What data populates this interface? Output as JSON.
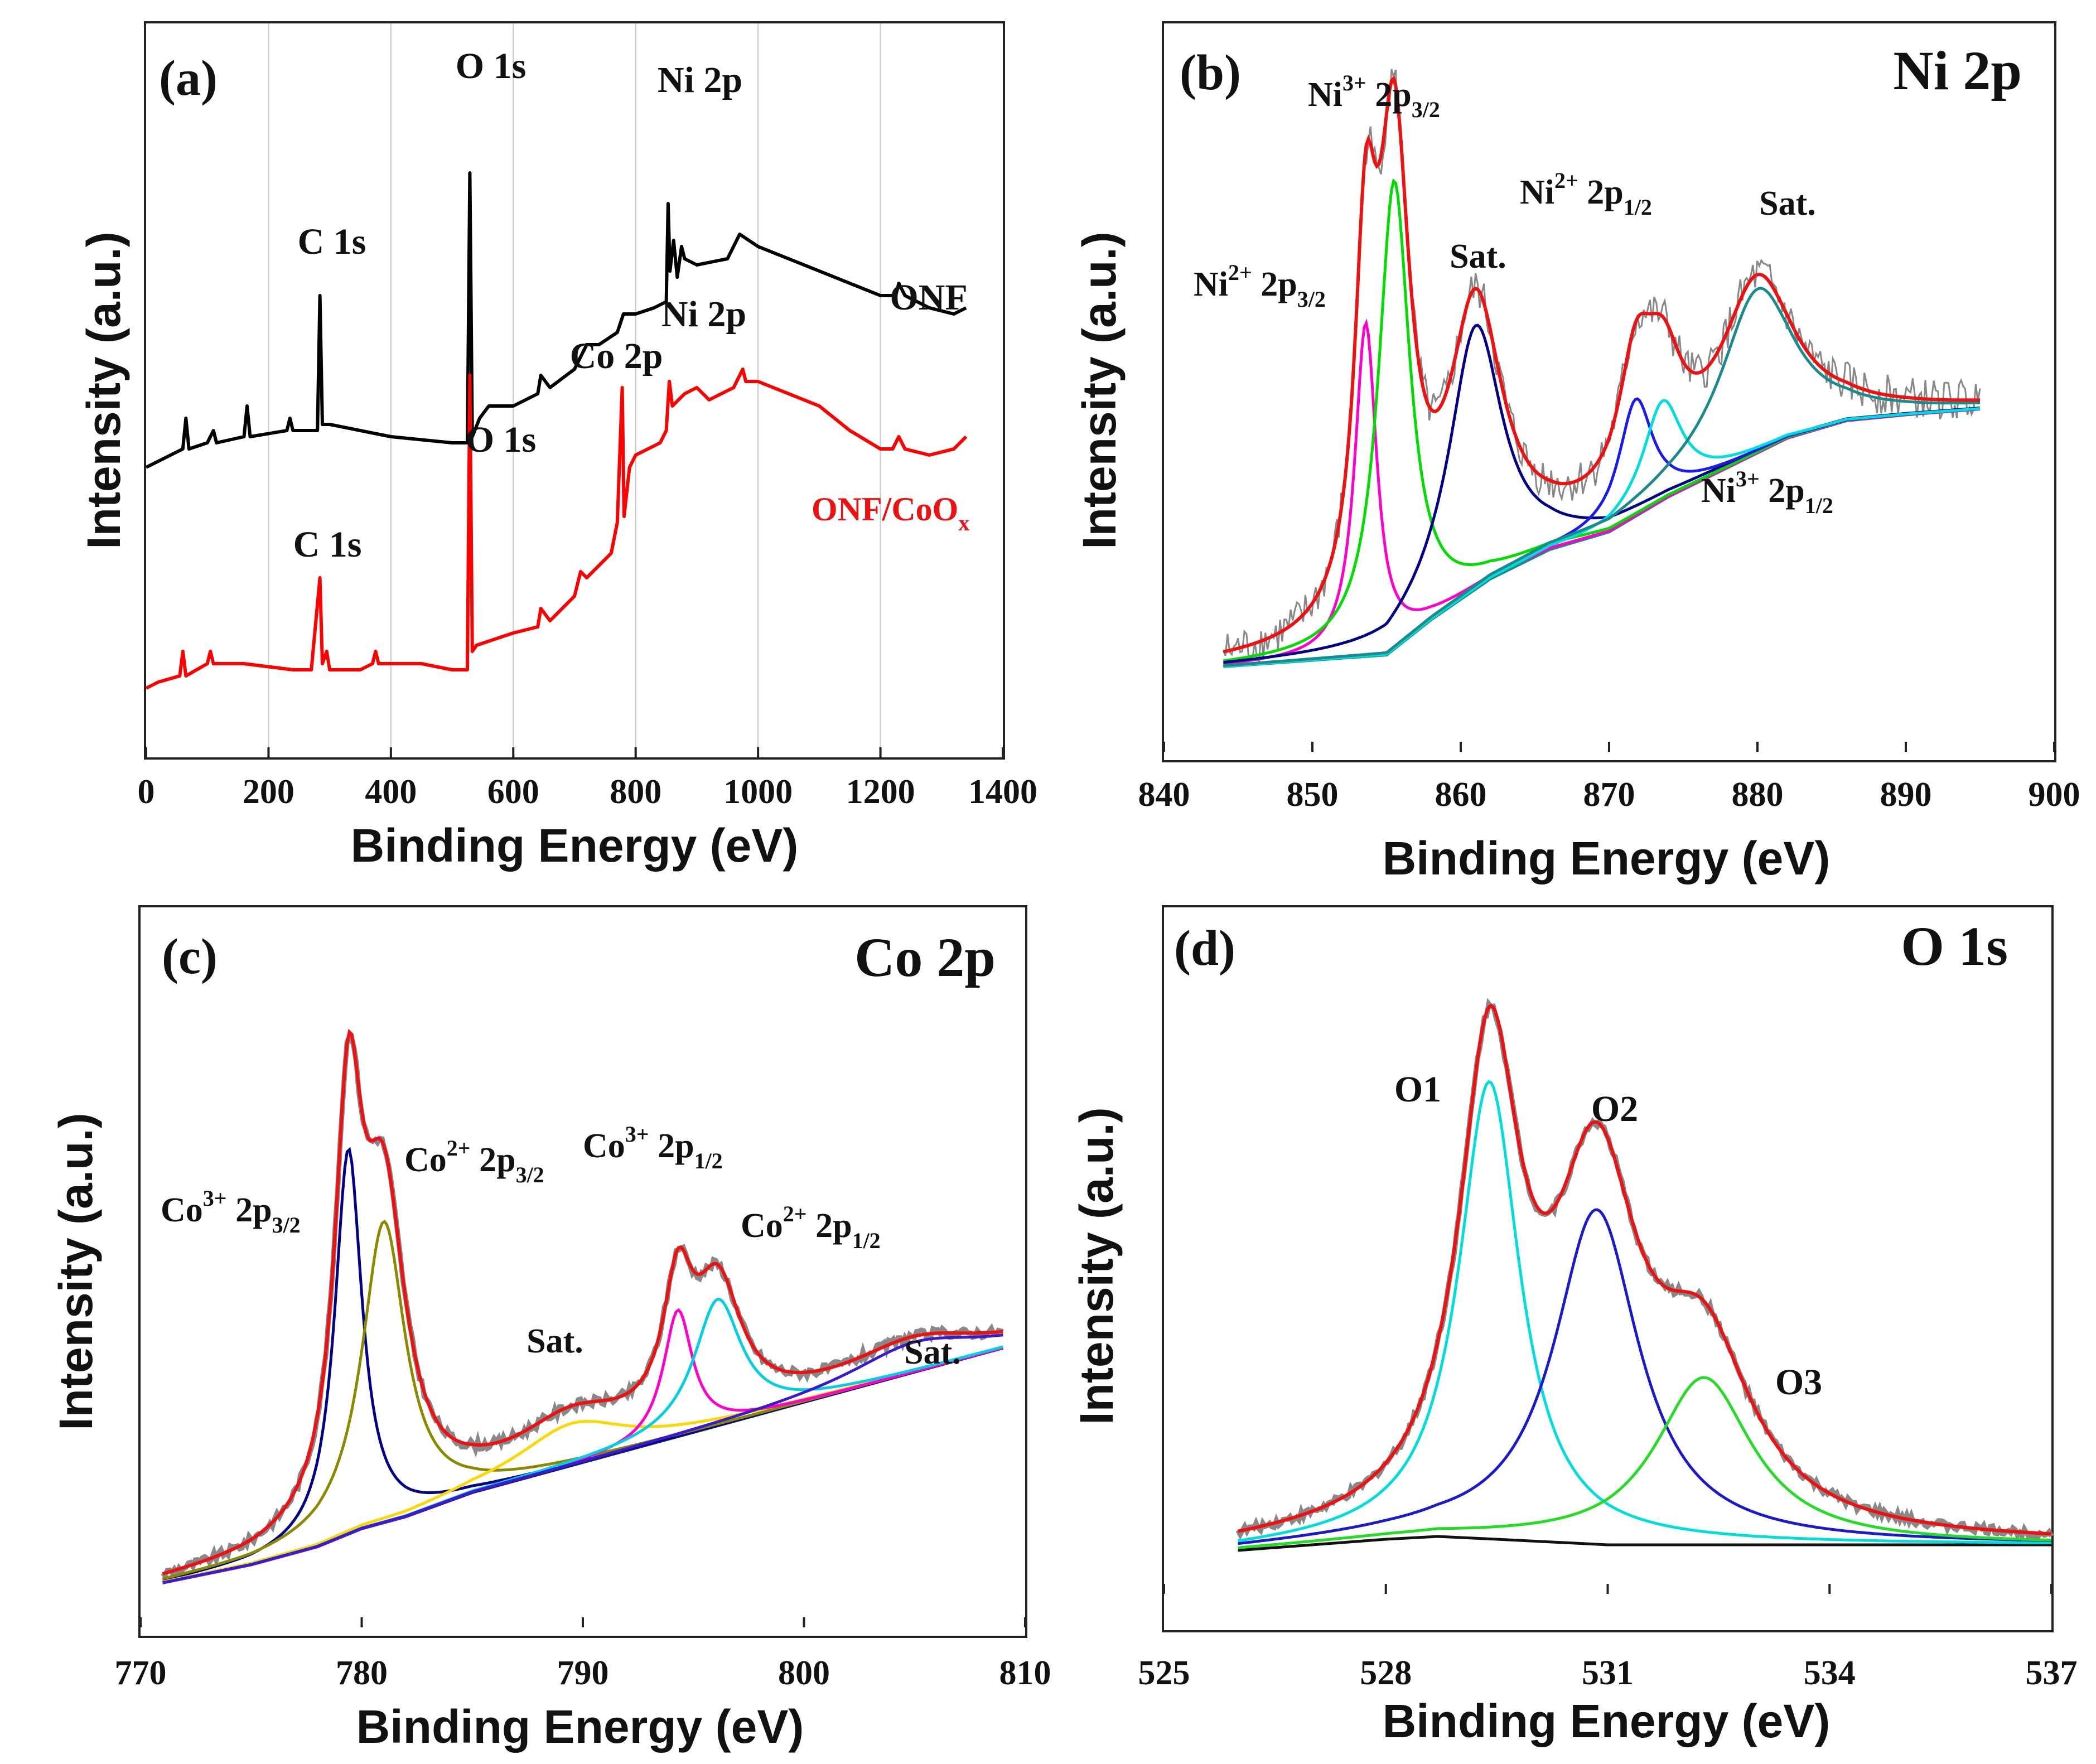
{
  "figure": {
    "panels": [
      {
        "id": "a",
        "letter": "(a)",
        "xlabel": "Binding Energy (eV)",
        "ylabel": "Intensity (a.u.)",
        "corner_title": ""
      },
      {
        "id": "b",
        "letter": "(b)",
        "xlabel": "Binding Energy (eV)",
        "ylabel": "Intensity (a.u.)",
        "corner_title": "Ni 2p"
      },
      {
        "id": "c",
        "letter": "(c)",
        "xlabel": "Binding Energy (eV)",
        "ylabel": "Intensity (a.u.)",
        "corner_title": "Co 2p"
      },
      {
        "id": "d",
        "letter": "(d)",
        "xlabel": "Binding Energy (eV)",
        "ylabel": "Intensity (a.u.)",
        "corner_title": "O 1s"
      }
    ]
  },
  "chart_data": [
    {
      "panel": "a",
      "type": "line",
      "title": "(a)",
      "xlabel": "Binding Energy (eV)",
      "ylabel": "Intensity (a.u.)",
      "xlim": [
        0,
        1400
      ],
      "ylim": [
        0,
        100
      ],
      "xticks": [
        0,
        200,
        400,
        600,
        800,
        1000,
        1200,
        1400
      ],
      "grid": "vertical",
      "series": [
        {
          "name": "ONF",
          "color": "#000000",
          "points": [
            [
              0,
              42
            ],
            [
              20,
              43
            ],
            [
              60,
              45
            ],
            [
              65,
              50
            ],
            [
              70,
              45
            ],
            [
              100,
              46
            ],
            [
              110,
              48
            ],
            [
              115,
              46
            ],
            [
              160,
              47
            ],
            [
              165,
              52
            ],
            [
              170,
              47
            ],
            [
              230,
              48
            ],
            [
              235,
              50
            ],
            [
              240,
              48
            ],
            [
              280,
              48
            ],
            [
              284,
              70
            ],
            [
              288,
              49
            ],
            [
              300,
              49
            ],
            [
              400,
              47
            ],
            [
              500,
              46
            ],
            [
              525,
              46
            ],
            [
              529,
              90
            ],
            [
              533,
              47
            ],
            [
              545,
              50
            ],
            [
              560,
              52
            ],
            [
              600,
              52
            ],
            [
              640,
              54
            ],
            [
              645,
              57
            ],
            [
              660,
              55
            ],
            [
              700,
              58
            ],
            [
              720,
              62
            ],
            [
              740,
              62
            ],
            [
              770,
              64
            ],
            [
              780,
              67
            ],
            [
              800,
              67
            ],
            [
              830,
              68
            ],
            [
              850,
              69
            ],
            [
              853,
              85
            ],
            [
              856,
              74
            ],
            [
              862,
              79
            ],
            [
              868,
              73
            ],
            [
              875,
              78
            ],
            [
              880,
              76
            ],
            [
              900,
              75
            ],
            [
              950,
              76
            ],
            [
              970,
              80
            ],
            [
              1000,
              78
            ],
            [
              1050,
              76
            ],
            [
              1100,
              74
            ],
            [
              1150,
              72
            ],
            [
              1200,
              70
            ],
            [
              1225,
              70
            ],
            [
              1230,
              72
            ],
            [
              1240,
              70
            ],
            [
              1280,
              68
            ],
            [
              1320,
              67
            ],
            [
              1340,
              68
            ]
          ]
        },
        {
          "name": "ONF/CoO_x",
          "color": "#ff0000",
          "points": [
            [
              0,
              6
            ],
            [
              20,
              7
            ],
            [
              55,
              8
            ],
            [
              60,
              12
            ],
            [
              65,
              8
            ],
            [
              100,
              10
            ],
            [
              105,
              12
            ],
            [
              110,
              10
            ],
            [
              160,
              10
            ],
            [
              240,
              9
            ],
            [
              270,
              9
            ],
            [
              284,
              24
            ],
            [
              288,
              10
            ],
            [
              295,
              12
            ],
            [
              300,
              9
            ],
            [
              350,
              9
            ],
            [
              370,
              10
            ],
            [
              375,
              12
            ],
            [
              380,
              10
            ],
            [
              450,
              10
            ],
            [
              500,
              9
            ],
            [
              525,
              9
            ],
            [
              529,
              57
            ],
            [
              533,
              12
            ],
            [
              540,
              13
            ],
            [
              600,
              15
            ],
            [
              640,
              16
            ],
            [
              645,
              19
            ],
            [
              660,
              17
            ],
            [
              700,
              21
            ],
            [
              710,
              25
            ],
            [
              720,
              24
            ],
            [
              750,
              27
            ],
            [
              760,
              28
            ],
            [
              770,
              33
            ],
            [
              778,
              55
            ],
            [
              781,
              34
            ],
            [
              790,
              42
            ],
            [
              800,
              44
            ],
            [
              840,
              46
            ],
            [
              850,
              48
            ],
            [
              855,
              56
            ],
            [
              860,
              52
            ],
            [
              880,
              54
            ],
            [
              900,
              55
            ],
            [
              920,
              53
            ],
            [
              940,
              54
            ],
            [
              960,
              55
            ],
            [
              975,
              58
            ],
            [
              980,
              56
            ],
            [
              1000,
              56
            ],
            [
              1050,
              54
            ],
            [
              1100,
              52
            ],
            [
              1150,
              48
            ],
            [
              1200,
              45
            ],
            [
              1220,
              45
            ],
            [
              1230,
              47
            ],
            [
              1240,
              45
            ],
            [
              1280,
              44
            ],
            [
              1320,
              45
            ],
            [
              1340,
              47
            ]
          ]
        }
      ],
      "annotations": [
        {
          "text": "O 1s",
          "group": "ONF"
        },
        {
          "text": "Ni 2p",
          "group": "ONF"
        },
        {
          "text": "C 1s",
          "group": "ONF"
        },
        {
          "text": "ONF",
          "group": "ONF"
        },
        {
          "text": "Ni 2p",
          "group": "ONF/CoOx"
        },
        {
          "text": "Co 2p",
          "group": "ONF/CoOx"
        },
        {
          "text": "O 1s",
          "group": "ONF/CoOx"
        },
        {
          "text": "C 1s",
          "group": "ONF/CoOx"
        },
        {
          "text": "ONF/CoO",
          "sub": "x",
          "group": "ONF/CoOx"
        }
      ]
    },
    {
      "panel": "b",
      "type": "line",
      "title": "Ni 2p",
      "xlabel": "Binding Energy (eV)",
      "ylabel": "Intensity (a.u.)",
      "xlim": [
        840,
        900
      ],
      "ylim": [
        0,
        100
      ],
      "xticks": [
        840,
        850,
        860,
        870,
        880,
        890,
        900
      ],
      "baseline": {
        "color": "#1a8a8a",
        "points": [
          [
            844,
            9
          ],
          [
            855,
            11
          ],
          [
            858,
            17
          ],
          [
            862,
            24
          ],
          [
            866,
            29
          ],
          [
            870,
            32
          ],
          [
            874,
            38
          ],
          [
            878,
            43
          ],
          [
            882,
            48
          ],
          [
            886,
            51
          ],
          [
            890,
            52
          ],
          [
            895,
            53
          ]
        ]
      },
      "peaks": [
        {
          "name": "Ni2+ 2p3/2",
          "color": "#ff00cc",
          "center": 853.6,
          "height": 57,
          "width": 0.9
        },
        {
          "name": "Ni3+ 2p3/2",
          "color": "#00dd00",
          "center": 855.5,
          "height": 80,
          "width": 1.3
        },
        {
          "name": "Sat. (861)",
          "color": "#000088",
          "center": 861.0,
          "height": 45,
          "width": 2.2
        },
        {
          "name": "Ni2+ 2p1/2",
          "color": "#1a1aee",
          "center": 871.8,
          "height": 20,
          "width": 1.4
        },
        {
          "name": "Ni3+ 2p1/2",
          "color": "#00dddd",
          "center": 873.6,
          "height": 17,
          "width": 1.6
        },
        {
          "name": "Sat. (880)",
          "color": "#1a8a8a",
          "center": 880.0,
          "height": 28,
          "width": 3.0
        }
      ],
      "envelope_color": "#ee1111",
      "raw_color": "#888888",
      "annotations": [
        {
          "text": "Ni",
          "sup": "3+",
          "tail": " 2p",
          "sub": "3/2"
        },
        {
          "text": "Ni",
          "sup": "2+",
          "tail": " 2p",
          "sub": "3/2"
        },
        {
          "text": "Sat."
        },
        {
          "text": "Ni",
          "sup": "2+",
          "tail": " 2p",
          "sub": "1/2"
        },
        {
          "text": "Sat."
        },
        {
          "text": "Ni",
          "sup": "3+",
          "tail": " 2p",
          "sub": "1/2"
        }
      ]
    },
    {
      "panel": "c",
      "type": "line",
      "title": "Co 2p",
      "xlabel": "Binding Energy (eV)",
      "ylabel": "Intensity (a.u.)",
      "xlim": [
        770,
        810
      ],
      "ylim": [
        0,
        100
      ],
      "xticks": [
        770,
        780,
        790,
        800,
        810
      ],
      "baseline": {
        "color": "#1a1a7a",
        "points": [
          [
            771,
            2
          ],
          [
            775,
            5
          ],
          [
            778,
            8
          ],
          [
            780,
            11
          ],
          [
            782,
            13
          ],
          [
            785,
            17
          ],
          [
            788,
            20
          ],
          [
            791,
            23
          ],
          [
            794,
            26
          ],
          [
            797,
            29
          ],
          [
            800,
            32
          ],
          [
            803,
            35
          ],
          [
            806,
            38
          ],
          [
            809,
            41
          ]
        ]
      },
      "peaks": [
        {
          "name": "Co3+ 2p3/2",
          "color": "#000088",
          "center": 779.4,
          "height": 64,
          "width": 0.75
        },
        {
          "name": "Co2+ 2p3/2",
          "color": "#8a8a00",
          "center": 781.0,
          "height": 50,
          "width": 1.2
        },
        {
          "name": "Sat. (789)",
          "color": "#ffd700",
          "center": 789.5,
          "height": 7,
          "width": 3.0
        },
        {
          "name": "Co3+ 2p1/2",
          "color": "#ff00cc",
          "center": 794.3,
          "height": 21,
          "width": 0.8
        },
        {
          "name": "Co2+ 2p1/2",
          "color": "#00d0e0",
          "center": 796.1,
          "height": 21,
          "width": 1.3
        },
        {
          "name": "Sat. (805)",
          "color": "#3a1ad0",
          "center": 805.0,
          "height": 5,
          "width": 3.5
        }
      ],
      "envelope_color": "#ee1111",
      "raw_color": "#888888",
      "annotations": [
        {
          "text": "Co",
          "sup": "3+",
          "tail": " 2p",
          "sub": "3/2"
        },
        {
          "text": "Co",
          "sup": "2+",
          "tail": " 2p",
          "sub": "3/2"
        },
        {
          "text": "Co",
          "sup": "3+",
          "tail": " 2p",
          "sub": "1/2"
        },
        {
          "text": "Co",
          "sup": "2+",
          "tail": " 2p",
          "sub": "1/2"
        },
        {
          "text": "Sat."
        },
        {
          "text": "Sat."
        }
      ]
    },
    {
      "panel": "d",
      "type": "line",
      "title": "O 1s",
      "xlabel": "Binding Energy (eV)",
      "ylabel": "Intensity (a.u.)",
      "xlim": [
        525,
        537
      ],
      "ylim": [
        0,
        100
      ],
      "xticks": [
        525,
        528,
        531,
        534,
        537
      ],
      "baseline": {
        "color": "#111111",
        "points": [
          [
            526,
            2
          ],
          [
            527,
            3
          ],
          [
            528,
            4
          ],
          [
            528.7,
            4.5
          ],
          [
            529.5,
            4
          ],
          [
            531,
            3
          ],
          [
            532,
            3
          ],
          [
            534,
            3
          ],
          [
            536,
            3
          ],
          [
            537,
            3
          ]
        ]
      },
      "peaks": [
        {
          "name": "O1",
          "color": "#00dddd",
          "center": 529.4,
          "height": 82,
          "width": 0.5
        },
        {
          "name": "O2",
          "color": "#1a1acc",
          "center": 530.85,
          "height": 60,
          "width": 0.7
        },
        {
          "name": "O3",
          "color": "#22dd22",
          "center": 532.3,
          "height": 30,
          "width": 0.8
        }
      ],
      "envelope_color": "#ee1111",
      "raw_color": "#888888",
      "annotations": [
        {
          "text": "O1"
        },
        {
          "text": "O2"
        },
        {
          "text": "O3"
        }
      ]
    }
  ]
}
